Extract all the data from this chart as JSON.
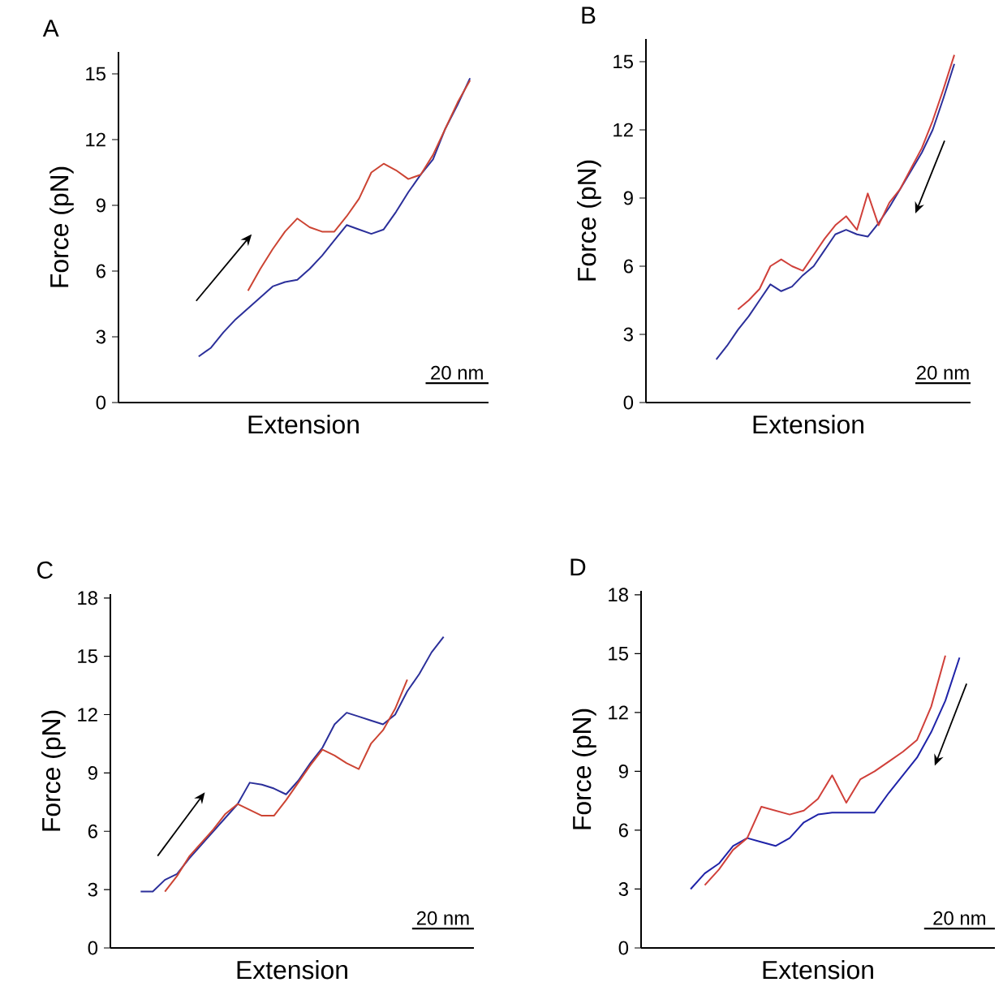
{
  "chart_data": [
    {
      "type": "line",
      "title": "A",
      "xlabel": "Extension",
      "ylabel": "Force (pN)",
      "annotations": [
        "20 nm"
      ],
      "tick_labels": "y",
      "categories": [
        null,
        null,
        null,
        null,
        null,
        null,
        null,
        null,
        null,
        null,
        null,
        null,
        null,
        null,
        null,
        null,
        null,
        null,
        null,
        null,
        null,
        null,
        null,
        null,
        null,
        null,
        null,
        null,
        null,
        null
      ],
      "ylim": [
        0,
        16
      ],
      "yticks": [
        0,
        3,
        6,
        9,
        12,
        15
      ],
      "series": [
        {
          "color": "#2b2f9a",
          "values": [
            null,
            null,
            null,
            null,
            null,
            null,
            2.1,
            2.5,
            3.2,
            3.8,
            4.3,
            4.8,
            5.3,
            5.5,
            5.6,
            6.1,
            6.7,
            7.4,
            8.1,
            7.9,
            7.7,
            7.9,
            8.7,
            9.6,
            10.4,
            11.1,
            12.5,
            13.6,
            14.8,
            null
          ]
        },
        {
          "color": "#cc4433",
          "values": [
            null,
            null,
            null,
            null,
            null,
            null,
            null,
            null,
            null,
            null,
            5.1,
            6.1,
            7.0,
            7.8,
            8.4,
            8.0,
            7.8,
            7.8,
            8.5,
            9.3,
            10.5,
            10.9,
            10.6,
            10.2,
            10.4,
            11.3,
            12.5,
            13.7,
            14.7,
            null
          ]
        }
      ]
    },
    {
      "type": "line",
      "title": "B",
      "xlabel": "Extension",
      "ylabel": "Force (pN)",
      "annotations": [
        "20 nm"
      ],
      "tick_labels": "y",
      "categories": [
        null,
        null,
        null,
        null,
        null,
        null,
        null,
        null,
        null,
        null,
        null,
        null,
        null,
        null,
        null,
        null,
        null,
        null,
        null,
        null,
        null,
        null,
        null,
        null,
        null,
        null,
        null,
        null,
        null,
        null
      ],
      "ylim": [
        0,
        16
      ],
      "yticks": [
        0,
        3,
        6,
        9,
        12,
        15
      ],
      "series": [
        {
          "color": "#2b2f9a",
          "values": [
            null,
            null,
            null,
            null,
            null,
            null,
            1.9,
            2.5,
            3.2,
            3.8,
            4.5,
            5.2,
            4.9,
            5.1,
            5.6,
            6.0,
            6.7,
            7.4,
            7.6,
            7.4,
            7.3,
            7.9,
            8.6,
            9.4,
            10.2,
            11.0,
            12.0,
            13.4,
            14.9,
            null
          ]
        },
        {
          "color": "#d0403a",
          "values": [
            null,
            null,
            null,
            null,
            null,
            null,
            null,
            null,
            4.1,
            4.5,
            5.0,
            6.0,
            6.3,
            6.0,
            5.8,
            6.5,
            7.2,
            7.8,
            8.2,
            7.6,
            9.2,
            7.8,
            8.8,
            9.4,
            10.3,
            11.2,
            12.4,
            13.8,
            15.3,
            null
          ]
        }
      ]
    },
    {
      "type": "line",
      "title": "C",
      "xlabel": "Extension",
      "ylabel": "Force (pN)",
      "annotations": [
        "20 nm"
      ],
      "tick_labels": "y",
      "categories": [
        null,
        null,
        null,
        null,
        null,
        null,
        null,
        null,
        null,
        null,
        null,
        null,
        null,
        null,
        null,
        null,
        null,
        null,
        null,
        null,
        null,
        null,
        null,
        null,
        null,
        null,
        null,
        null,
        null,
        null
      ],
      "ylim": [
        0,
        18.2
      ],
      "yticks": [
        0,
        3,
        6,
        9,
        12,
        15,
        18
      ],
      "series": [
        {
          "color": "#2b2f9a",
          "values": [
            null,
            null,
            2.9,
            2.9,
            3.5,
            3.8,
            4.6,
            5.3,
            6.0,
            6.7,
            7.4,
            8.5,
            8.4,
            8.2,
            7.9,
            8.6,
            9.5,
            10.3,
            11.5,
            12.1,
            11.9,
            11.7,
            11.5,
            12.0,
            13.2,
            14.1,
            15.2,
            16.0,
            null,
            null
          ]
        },
        {
          "color": "#cc4433",
          "values": [
            null,
            null,
            null,
            null,
            2.9,
            3.7,
            4.7,
            5.4,
            6.1,
            6.9,
            7.4,
            7.1,
            6.8,
            6.8,
            7.6,
            8.5,
            9.4,
            10.2,
            9.9,
            9.5,
            9.2,
            10.5,
            11.2,
            12.3,
            13.8,
            null,
            null,
            null,
            null,
            null
          ]
        }
      ]
    },
    {
      "type": "line",
      "title": "D",
      "xlabel": "Extension",
      "ylabel": "Force (pN)",
      "annotations": [
        "20 nm"
      ],
      "tick_labels": "y",
      "categories": [
        null,
        null,
        null,
        null,
        null,
        null,
        null,
        null,
        null,
        null,
        null,
        null,
        null,
        null,
        null,
        null,
        null,
        null,
        null,
        null,
        null,
        null,
        null,
        null,
        null
      ],
      "ylim": [
        0,
        18.2
      ],
      "yticks": [
        0,
        3,
        6,
        9,
        12,
        15,
        18
      ],
      "series": [
        {
          "color": "#1f23a8",
          "values": [
            null,
            null,
            null,
            3.0,
            3.8,
            4.3,
            5.2,
            5.6,
            5.4,
            5.2,
            5.6,
            6.4,
            6.8,
            6.9,
            6.9,
            6.9,
            6.9,
            7.9,
            8.8,
            9.7,
            11.0,
            12.6,
            14.8,
            null,
            null
          ]
        },
        {
          "color": "#d0403a",
          "values": [
            null,
            null,
            null,
            null,
            3.2,
            4.0,
            5.0,
            5.6,
            7.2,
            7.0,
            6.8,
            7.0,
            7.6,
            8.8,
            7.4,
            8.6,
            9.0,
            9.5,
            10.0,
            10.6,
            12.3,
            14.9,
            null,
            null,
            null
          ]
        }
      ]
    }
  ]
}
